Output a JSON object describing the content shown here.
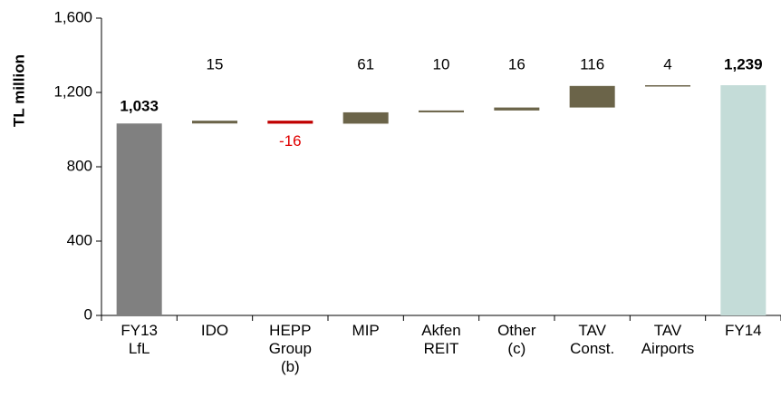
{
  "chart_data": {
    "type": "waterfall",
    "y_label": "TL million",
    "categories": [
      [
        "FY13",
        "LfL"
      ],
      [
        "IDO"
      ],
      [
        "HEPP",
        "Group",
        "(b)"
      ],
      [
        "MIP"
      ],
      [
        "Akfen",
        "REIT"
      ],
      [
        "Other",
        "(c)"
      ],
      [
        "TAV",
        "Const."
      ],
      [
        "TAV",
        "Airports"
      ],
      [
        "FY14"
      ]
    ],
    "values": [
      1033,
      15,
      -16,
      61,
      10,
      16,
      116,
      4,
      1239
    ],
    "value_labels": [
      "1,033",
      "15",
      "-16",
      "61",
      "10",
      "16",
      "116",
      "4",
      "1,239"
    ],
    "colors": [
      "#808080",
      "#6b6449",
      "#c00000",
      "#6b6449",
      "#6b6449",
      "#6b6449",
      "#6b6449",
      "#6b6449",
      "#c4dcd8"
    ],
    "negative_label_color": "#e00000",
    "ylim": [
      0,
      1600
    ],
    "yticks": [
      0,
      400,
      800,
      {
        "value": 1200,
        "label": "1,200"
      },
      {
        "value": 1600,
        "label": "1,600"
      }
    ]
  }
}
